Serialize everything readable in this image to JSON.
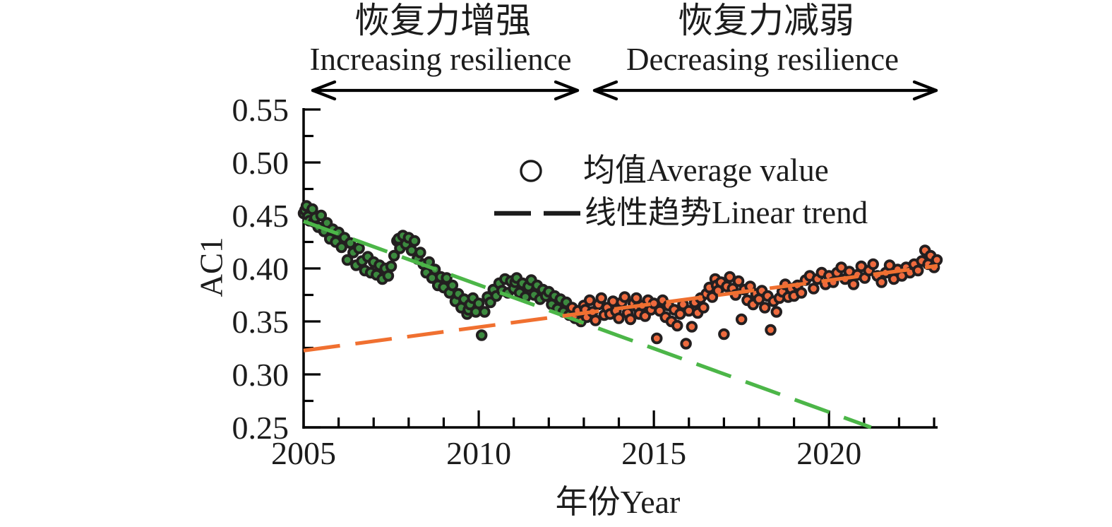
{
  "figure": {
    "annotations": {
      "left": {
        "zh": "恢复力增强",
        "en": "Increasing resilience"
      },
      "right": {
        "zh": "恢复力减弱",
        "en": "Decreasing resilience"
      }
    },
    "legend": {
      "marker_label": "均值Average value",
      "line_label": "线性趋势Linear trend"
    }
  },
  "chart_data": {
    "type": "scatter",
    "title": "",
    "xlabel": "年份Year",
    "ylabel": "AC1",
    "xlim": [
      2005,
      2023.1
    ],
    "ylim": [
      0.25,
      0.55
    ],
    "grid": false,
    "x_major_ticks": [
      2005,
      2010,
      2015,
      2020
    ],
    "x_major_labels": [
      "2005",
      "2010",
      "2015",
      "2020"
    ],
    "x_minor_ticks": [
      2006,
      2007,
      2008,
      2009,
      2011,
      2012,
      2013,
      2014,
      2016,
      2017,
      2018,
      2019,
      2021,
      2022,
      2023
    ],
    "y_major_ticks": [
      0.25,
      0.3,
      0.35,
      0.4,
      0.45,
      0.5,
      0.55
    ],
    "y_major_labels": [
      "0.25",
      "0.30",
      "0.35",
      "0.40",
      "0.45",
      "0.50",
      "0.55"
    ],
    "y_minor_ticks": [
      0.275,
      0.325,
      0.375,
      0.425,
      0.475,
      0.525
    ],
    "colors": {
      "green_dot": "#3c8a3f",
      "orange_dot": "#ee6a3e",
      "dot_outline": "#231f20",
      "green_trend": "#4cb648",
      "orange_trend": "#f07030",
      "axis": "#000000"
    },
    "series": [
      {
        "name": "average-value-increasing-period",
        "marker": "circle",
        "color": "#3c8a3f",
        "points": [
          [
            2005.0,
            0.452
          ],
          [
            2005.042,
            0.455
          ],
          [
            2005.083,
            0.459
          ],
          [
            2005.125,
            0.449
          ],
          [
            2005.167,
            0.445
          ],
          [
            2005.25,
            0.456
          ],
          [
            2005.292,
            0.444
          ],
          [
            2005.333,
            0.448
          ],
          [
            2005.417,
            0.439
          ],
          [
            2005.5,
            0.45
          ],
          [
            2005.583,
            0.435
          ],
          [
            2005.667,
            0.443
          ],
          [
            2005.75,
            0.428
          ],
          [
            2005.833,
            0.437
          ],
          [
            2005.917,
            0.425
          ],
          [
            2006.0,
            0.434
          ],
          [
            2006.083,
            0.42
          ],
          [
            2006.167,
            0.429
          ],
          [
            2006.25,
            0.408
          ],
          [
            2006.333,
            0.424
          ],
          [
            2006.417,
            0.415
          ],
          [
            2006.5,
            0.403
          ],
          [
            2006.583,
            0.419
          ],
          [
            2006.667,
            0.407
          ],
          [
            2006.75,
            0.398
          ],
          [
            2006.833,
            0.411
          ],
          [
            2006.917,
            0.396
          ],
          [
            2007.0,
            0.406
          ],
          [
            2007.083,
            0.394
          ],
          [
            2007.167,
            0.403
          ],
          [
            2007.25,
            0.39
          ],
          [
            2007.333,
            0.4
          ],
          [
            2007.417,
            0.393
          ],
          [
            2007.5,
            0.402
          ],
          [
            2007.583,
            0.412
          ],
          [
            2007.667,
            0.426
          ],
          [
            2007.708,
            0.428
          ],
          [
            2007.75,
            0.419
          ],
          [
            2007.833,
            0.431
          ],
          [
            2007.917,
            0.423
          ],
          [
            2008.0,
            0.429
          ],
          [
            2008.083,
            0.417
          ],
          [
            2008.167,
            0.426
          ],
          [
            2008.25,
            0.409
          ],
          [
            2008.333,
            0.415
          ],
          [
            2008.417,
            0.404
          ],
          [
            2008.5,
            0.396
          ],
          [
            2008.583,
            0.406
          ],
          [
            2008.667,
            0.391
          ],
          [
            2008.75,
            0.399
          ],
          [
            2008.833,
            0.384
          ],
          [
            2008.917,
            0.392
          ],
          [
            2009.0,
            0.382
          ],
          [
            2009.083,
            0.391
          ],
          [
            2009.167,
            0.377
          ],
          [
            2009.25,
            0.384
          ],
          [
            2009.333,
            0.369
          ],
          [
            2009.417,
            0.376
          ],
          [
            2009.5,
            0.363
          ],
          [
            2009.583,
            0.371
          ],
          [
            2009.667,
            0.357
          ],
          [
            2009.708,
            0.361
          ],
          [
            2009.75,
            0.366
          ],
          [
            2009.833,
            0.372
          ],
          [
            2009.917,
            0.359
          ],
          [
            2010.0,
            0.367
          ],
          [
            2010.083,
            0.337
          ],
          [
            2010.167,
            0.359
          ],
          [
            2010.25,
            0.373
          ],
          [
            2010.333,
            0.368
          ],
          [
            2010.417,
            0.38
          ],
          [
            2010.5,
            0.374
          ],
          [
            2010.583,
            0.386
          ],
          [
            2010.667,
            0.379
          ],
          [
            2010.75,
            0.39
          ],
          [
            2010.833,
            0.377
          ],
          [
            2010.917,
            0.388
          ],
          [
            2011.0,
            0.381
          ],
          [
            2011.042,
            0.387
          ],
          [
            2011.083,
            0.391
          ],
          [
            2011.167,
            0.377
          ],
          [
            2011.25,
            0.386
          ],
          [
            2011.333,
            0.373
          ],
          [
            2011.417,
            0.383
          ],
          [
            2011.5,
            0.389
          ],
          [
            2011.583,
            0.375
          ],
          [
            2011.667,
            0.384
          ],
          [
            2011.75,
            0.371
          ],
          [
            2011.833,
            0.38
          ],
          [
            2011.917,
            0.374
          ],
          [
            2012.0,
            0.378
          ],
          [
            2012.083,
            0.366
          ],
          [
            2012.167,
            0.374
          ],
          [
            2012.25,
            0.362
          ],
          [
            2012.333,
            0.371
          ],
          [
            2012.417,
            0.359
          ],
          [
            2012.5,
            0.368
          ],
          [
            2012.583,
            0.356
          ]
        ]
      },
      {
        "name": "average-value-decreasing-period",
        "marker": "circle",
        "color": "#ee6a3e",
        "points": [
          [
            2012.667,
            0.363
          ],
          [
            2012.75,
            0.353
          ],
          [
            2012.833,
            0.36
          ],
          [
            2012.917,
            0.35
          ],
          [
            2013.0,
            0.365
          ],
          [
            2013.042,
            0.361
          ],
          [
            2013.083,
            0.354
          ],
          [
            2013.167,
            0.37
          ],
          [
            2013.25,
            0.359
          ],
          [
            2013.333,
            0.351
          ],
          [
            2013.417,
            0.366
          ],
          [
            2013.5,
            0.372
          ],
          [
            2013.583,
            0.356
          ],
          [
            2013.667,
            0.363
          ],
          [
            2013.75,
            0.357
          ],
          [
            2013.833,
            0.369
          ],
          [
            2013.917,
            0.36
          ],
          [
            2014.0,
            0.353
          ],
          [
            2014.083,
            0.368
          ],
          [
            2014.167,
            0.373
          ],
          [
            2014.25,
            0.358
          ],
          [
            2014.333,
            0.352
          ],
          [
            2014.417,
            0.367
          ],
          [
            2014.5,
            0.372
          ],
          [
            2014.542,
            0.363
          ],
          [
            2014.583,
            0.357
          ],
          [
            2014.667,
            0.365
          ],
          [
            2014.75,
            0.355
          ],
          [
            2014.833,
            0.37
          ],
          [
            2014.917,
            0.361
          ],
          [
            2015.0,
            0.367
          ],
          [
            2015.083,
            0.334
          ],
          [
            2015.167,
            0.36
          ],
          [
            2015.25,
            0.37
          ],
          [
            2015.333,
            0.354
          ],
          [
            2015.417,
            0.365
          ],
          [
            2015.5,
            0.35
          ],
          [
            2015.583,
            0.361
          ],
          [
            2015.667,
            0.346
          ],
          [
            2015.75,
            0.357
          ],
          [
            2015.833,
            0.366
          ],
          [
            2015.917,
            0.329
          ],
          [
            2016.0,
            0.36
          ],
          [
            2016.083,
            0.345
          ],
          [
            2016.167,
            0.368
          ],
          [
            2016.25,
            0.358
          ],
          [
            2016.333,
            0.372
          ],
          [
            2016.417,
            0.363
          ],
          [
            2016.5,
            0.376
          ],
          [
            2016.583,
            0.382
          ],
          [
            2016.667,
            0.373
          ],
          [
            2016.75,
            0.39
          ],
          [
            2016.792,
            0.384
          ],
          [
            2016.833,
            0.379
          ],
          [
            2016.917,
            0.387
          ],
          [
            2017.0,
            0.338
          ],
          [
            2017.083,
            0.383
          ],
          [
            2017.167,
            0.392
          ],
          [
            2017.25,
            0.381
          ],
          [
            2017.333,
            0.375
          ],
          [
            2017.417,
            0.388
          ],
          [
            2017.5,
            0.352
          ],
          [
            2017.583,
            0.38
          ],
          [
            2017.667,
            0.37
          ],
          [
            2017.75,
            0.383
          ],
          [
            2017.833,
            0.366
          ],
          [
            2017.917,
            0.376
          ],
          [
            2018.0,
            0.371
          ],
          [
            2018.083,
            0.379
          ],
          [
            2018.167,
            0.363
          ],
          [
            2018.25,
            0.374
          ],
          [
            2018.333,
            0.342
          ],
          [
            2018.417,
            0.369
          ],
          [
            2018.5,
            0.359
          ],
          [
            2018.583,
            0.372
          ],
          [
            2018.667,
            0.378
          ],
          [
            2018.75,
            0.385
          ],
          [
            2018.833,
            0.373
          ],
          [
            2018.917,
            0.381
          ],
          [
            2019.0,
            0.374
          ],
          [
            2019.1,
            0.384
          ],
          [
            2019.21,
            0.377
          ],
          [
            2019.33,
            0.389
          ],
          [
            2019.45,
            0.393
          ],
          [
            2019.56,
            0.381
          ],
          [
            2019.67,
            0.39
          ],
          [
            2019.79,
            0.396
          ],
          [
            2019.9,
            0.385
          ],
          [
            2020.0,
            0.393
          ],
          [
            2020.12,
            0.387
          ],
          [
            2020.23,
            0.396
          ],
          [
            2020.35,
            0.401
          ],
          [
            2020.46,
            0.39
          ],
          [
            2020.58,
            0.397
          ],
          [
            2020.7,
            0.385
          ],
          [
            2020.81,
            0.394
          ],
          [
            2020.92,
            0.402
          ],
          [
            2021.02,
            0.391
          ],
          [
            2021.14,
            0.398
          ],
          [
            2021.26,
            0.404
          ],
          [
            2021.38,
            0.393
          ],
          [
            2021.5,
            0.387
          ],
          [
            2021.62,
            0.396
          ],
          [
            2021.73,
            0.403
          ],
          [
            2021.85,
            0.39
          ],
          [
            2021.96,
            0.399
          ],
          [
            2022.08,
            0.393
          ],
          [
            2022.2,
            0.401
          ],
          [
            2022.31,
            0.396
          ],
          [
            2022.43,
            0.404
          ],
          [
            2022.54,
            0.398
          ],
          [
            2022.65,
            0.407
          ],
          [
            2022.74,
            0.417
          ],
          [
            2022.83,
            0.404
          ],
          [
            2022.9,
            0.412
          ],
          [
            2023.0,
            0.401
          ],
          [
            2023.08,
            0.408
          ]
        ]
      }
    ],
    "trends": [
      {
        "name": "linear-trend-increasing-period",
        "color": "#4cb648",
        "from": [
          2005,
          0.4445
        ],
        "to": [
          2021.2,
          0.25
        ]
      },
      {
        "name": "linear-trend-decreasing-period",
        "color": "#f07030",
        "from": [
          2005,
          0.3225
        ],
        "to": [
          2023.1,
          0.4025
        ]
      }
    ]
  }
}
